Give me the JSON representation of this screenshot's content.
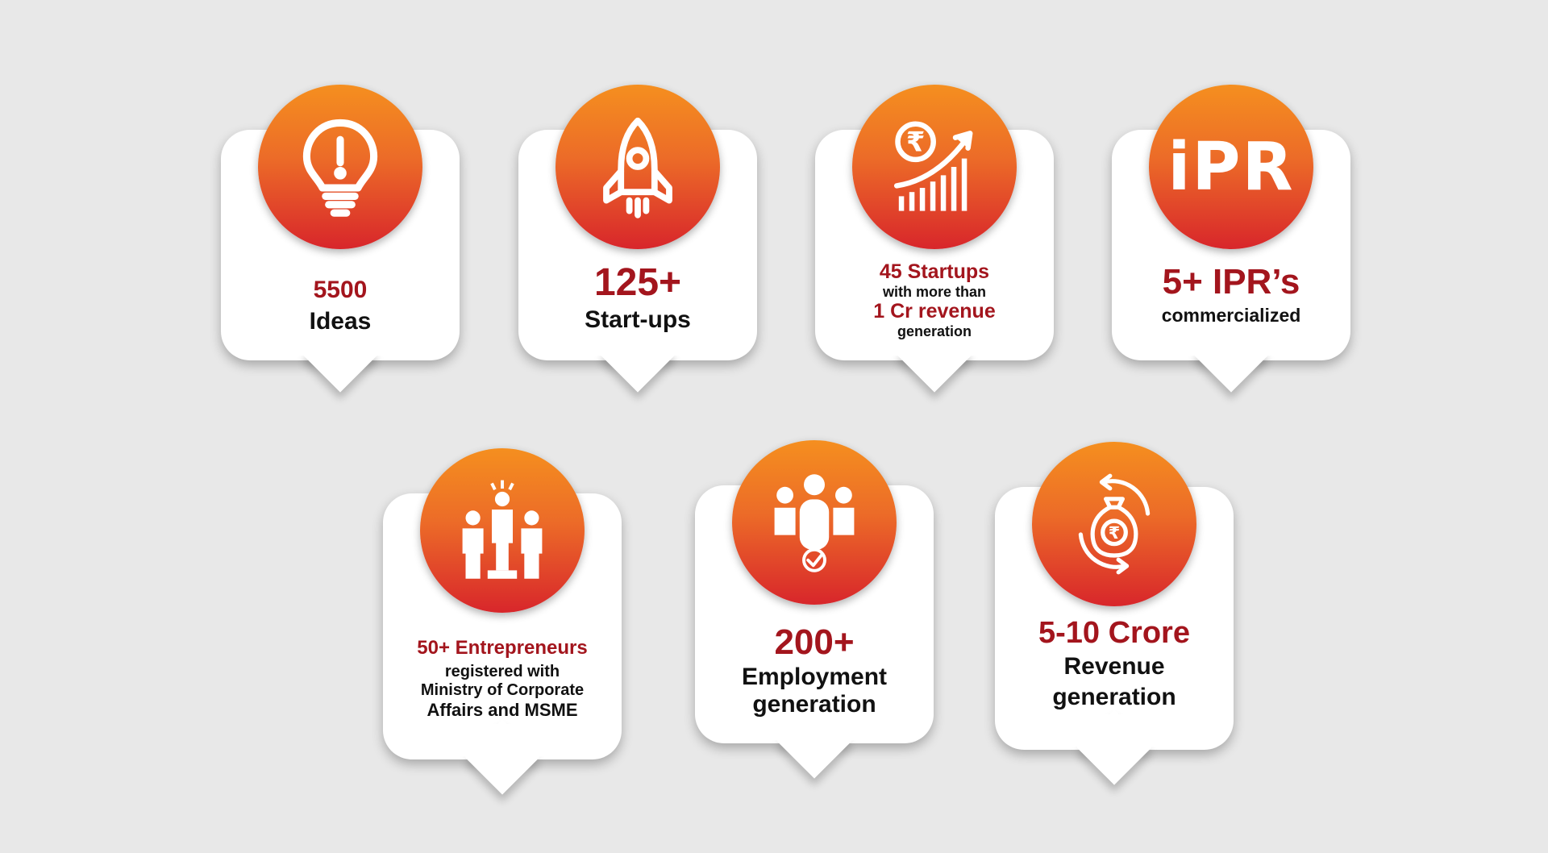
{
  "cards": [
    {
      "icon": "lightbulb-icon",
      "line1": "5500",
      "line2": "Ideas"
    },
    {
      "icon": "rocket-icon",
      "line1": "125+",
      "line2": "Start-ups"
    },
    {
      "icon": "revenue-growth-icon",
      "icon_symbol": "₹",
      "line1": "45 Startups",
      "line2": "with more than",
      "line3": "1 Cr revenue",
      "line4": "generation"
    },
    {
      "icon": "ipr-icon",
      "icon_text": "iPR",
      "line1": "5+ IPR’s",
      "line2": "commercialized"
    },
    {
      "icon": "entrepreneurs-icon",
      "line1": "50+ Entrepreneurs",
      "line2": "registered with",
      "line3": "Ministry of Corporate",
      "line4": "Affairs and MSME"
    },
    {
      "icon": "employment-group-icon",
      "line1": "200+",
      "line2": "Employment",
      "line3": "generation"
    },
    {
      "icon": "money-bag-cycle-icon",
      "icon_symbol": "₹",
      "line1": "5-10 Crore",
      "line2": "Revenue",
      "line3": "generation"
    }
  ],
  "colors": {
    "accent_orange": "#f58f1f",
    "accent_red": "#d8262b",
    "text_red": "#a3151d",
    "background": "#e8e8e8"
  }
}
